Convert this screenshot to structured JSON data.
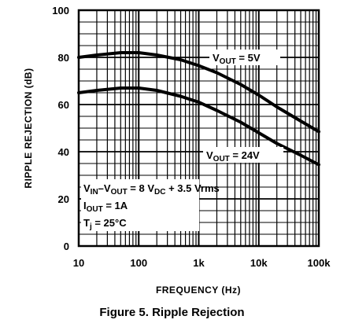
{
  "caption": "Figure 5. Ripple Rejection",
  "chart_data": {
    "type": "line",
    "title": "",
    "xlabel": "FREQUENCY (Hz)",
    "ylabel": "RIPPLE REJECTION (dB)",
    "x_scale": "log",
    "xlim": [
      10,
      100000
    ],
    "ylim": [
      0,
      100
    ],
    "x_ticks": [
      10,
      100,
      1000,
      10000,
      100000
    ],
    "x_tick_labels": [
      "10",
      "100",
      "1k",
      "10k",
      "100k"
    ],
    "y_ticks": [
      0,
      20,
      40,
      60,
      80,
      100
    ],
    "y_tick_labels": [
      "0",
      "20",
      "40",
      "60",
      "80",
      "100"
    ],
    "grid": true,
    "series": [
      {
        "name": "VOUT = 5V",
        "x": [
          10,
          20,
          50,
          100,
          200,
          500,
          1000,
          2000,
          5000,
          10000,
          20000,
          50000,
          100000
        ],
        "y": [
          80,
          81,
          82,
          82,
          81,
          79,
          76.5,
          73.5,
          68.5,
          64,
          59,
          53,
          48.5
        ]
      },
      {
        "name": "VOUT = 24V",
        "x": [
          10,
          20,
          50,
          100,
          200,
          500,
          1000,
          2000,
          5000,
          10000,
          20000,
          50000,
          100000
        ],
        "y": [
          65,
          66,
          67,
          67,
          66,
          63.5,
          61,
          57.5,
          52.5,
          48,
          43.5,
          38.5,
          34.5
        ]
      }
    ],
    "annotations": {
      "line1_main": "VIN",
      "line1_sep": "–V",
      "line1_sub": "OUT",
      "line1_mid": " = 8 V",
      "line1_dc": "DC",
      "line1_end": " + 3.5 Vrms",
      "line2_main": "I",
      "line2_sub": "OUT",
      "line2_end": " = 1A",
      "line3_main": "T",
      "line3_sub": "j",
      "line3_end": " = 25°C",
      "label5_v": "V",
      "label5_sub": "OUT",
      "label5_end": " = 5V",
      "label24_v": "V",
      "label24_sub": "OUT",
      "label24_end": " = 24V"
    }
  }
}
